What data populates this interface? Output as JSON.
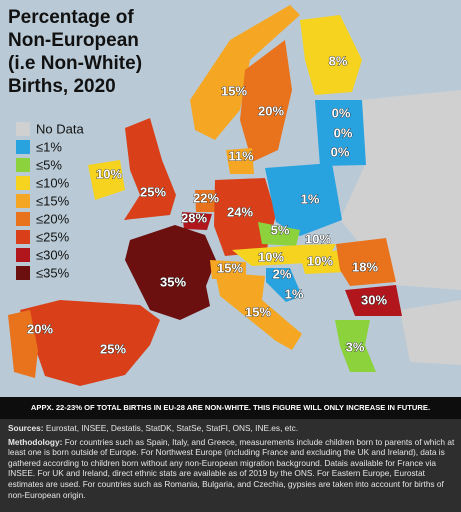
{
  "title_lines": [
    "Percentage of",
    "Non-European",
    "(i.e Non-White)",
    "Births, 2020"
  ],
  "legend": [
    "No Data",
    "≤1%",
    "≤5%",
    "≤10%",
    "≤15%",
    "≤20%",
    "≤25%",
    "≤30%",
    "≤35%"
  ],
  "map_labels": [
    "8%",
    "15%",
    "20%",
    "0%",
    "0%",
    "0%",
    "11%",
    "10%",
    "25%",
    "1%",
    "22%",
    "24%",
    "28%",
    "5%",
    "10%",
    "10%",
    "10%",
    "18%",
    "15%",
    "2%",
    "35%",
    "1%",
    "30%",
    "15%",
    "20%",
    "25%",
    "3%"
  ],
  "banner": "APPX. 22-23% OF TOTAL BIRTHS IN EU-28 ARE NON-WHITE. THIS FIGURE WILL ONLY INCREASE IN FUTURE.",
  "sources": {
    "heading": "Sources:",
    "text": "Eurostat, INSEE, Destatis, StatDK, StatSe, StatFI, ONS, INE.es, etc."
  },
  "methodology": {
    "heading": "Methodology:",
    "text": "For countries such as Spain, Italy, and Greece, measurements include children born to parents of which at least one is born outside of Europe. For Northwest Europe (including France and excluding the UK and Ireland), data is gathered according to children born without any non-European migration background. Datais available for France via INSEE. For UK and Ireland, direct ethnic stats are available as of 2019 by the ONS. For Eastern Europe, Eurostat estimates are used. For countries such as Romania, Bulgaria, and Czechia, gypsies are taken into account for births of non-European origin."
  }
}
